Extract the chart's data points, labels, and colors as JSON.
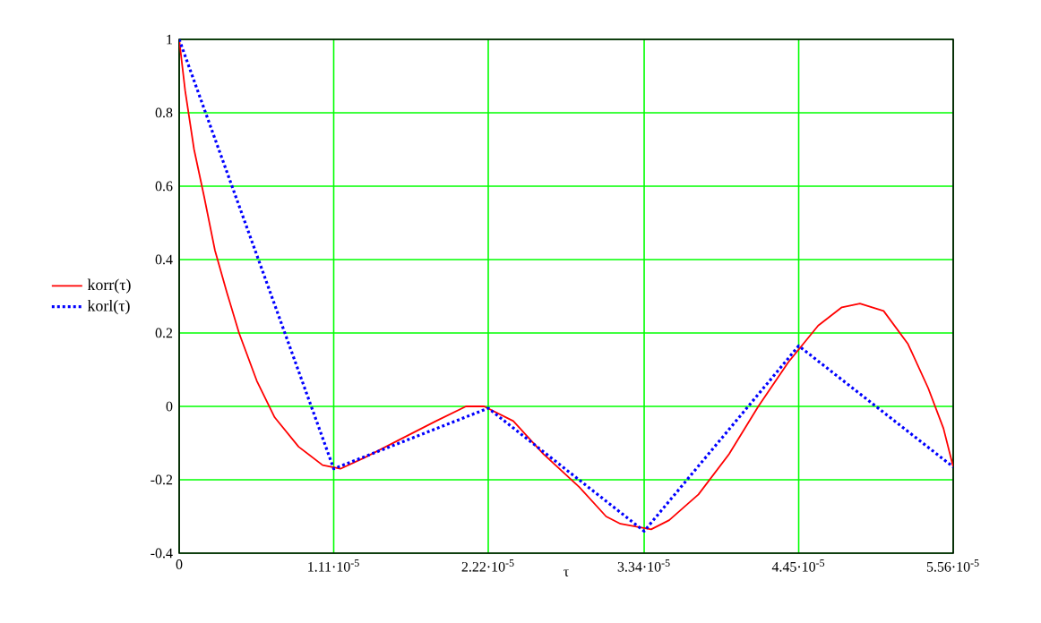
{
  "chart_data": {
    "type": "line",
    "xlabel": "τ",
    "xlim": [
      0,
      5.56e-05
    ],
    "ylim": [
      -0.4,
      1
    ],
    "xticks": [
      0,
      {
        "value": 1.11e-05,
        "label": "1.11·10$^{-5}$"
      },
      {
        "value": 2.22e-05,
        "label": "2.22·10$^{-5}$"
      },
      {
        "value": 3.34e-05,
        "label": "3.34·10$^{-5}$"
      },
      {
        "value": 4.45e-05,
        "label": "4.45·10$^{-5}$"
      },
      {
        "value": 5.56e-05,
        "label": "5.56·10$^{-5}$"
      }
    ],
    "yticks": [
      -0.4,
      -0.2,
      0,
      0.2,
      0.4,
      0.6,
      0.8,
      1
    ],
    "grid": true,
    "legend": "left",
    "marker": "none",
    "series": [
      {
        "name": "korr(τ)",
        "color": "#ff0000",
        "line_style": "solid",
        "x": [
          0,
          4.3e-07,
          1.07e-06,
          1.8e-06,
          2.57e-06,
          3.43e-06,
          4.3e-06,
          5.57e-06,
          6.86e-06,
          8.58e-06,
          1.03e-05,
          1.158e-05,
          1.33e-05,
          1.587e-05,
          1.845e-05,
          2.06e-05,
          2.19e-05,
          2.4e-05,
          2.617e-05,
          2.874e-05,
          3.067e-05,
          3.17e-05,
          3.39e-05,
          3.52e-05,
          3.73e-05,
          3.95e-05,
          4.16e-05,
          4.375e-05,
          4.59e-05,
          4.76e-05,
          4.89e-05,
          5.06e-05,
          5.235e-05,
          5.38e-05,
          5.49e-05,
          5.55e-05,
          5.56e-05
        ],
        "values": [
          1,
          0.86,
          0.7,
          0.57,
          0.425,
          0.31,
          0.2,
          0.07,
          -0.03,
          -0.11,
          -0.16,
          -0.17,
          -0.14,
          -0.09,
          -0.04,
          0,
          0,
          -0.04,
          -0.13,
          -0.22,
          -0.3,
          -0.32,
          -0.335,
          -0.31,
          -0.24,
          -0.13,
          0,
          0.12,
          0.22,
          0.27,
          0.28,
          0.26,
          0.17,
          0.05,
          -0.06,
          -0.15,
          -0.165
        ]
      },
      {
        "name": "korl(τ)",
        "color": "#0000ff",
        "line_style": "dotted",
        "x": [
          0,
          1.11e-05,
          2.22e-05,
          3.34e-05,
          4.45e-05,
          5.56e-05
        ],
        "values": [
          1,
          -0.17,
          -0.005,
          -0.34,
          0.165,
          -0.165
        ]
      }
    ]
  }
}
